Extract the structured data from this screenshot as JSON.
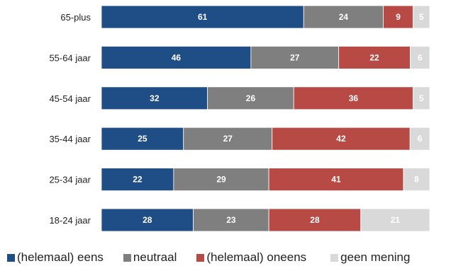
{
  "chart_data": {
    "type": "bar",
    "orientation": "horizontal",
    "stacked": true,
    "categories": [
      "65-plus",
      "55-64 jaar",
      "45-54 jaar",
      "35-44 jaar",
      "25-34 jaar",
      "18-24 jaar"
    ],
    "series": [
      {
        "name": "(helemaal) eens",
        "color": "#1f4e87",
        "values": [
          61,
          46,
          32,
          25,
          22,
          28
        ]
      },
      {
        "name": "neutraal",
        "color": "#7f7f7f",
        "values": [
          24,
          27,
          26,
          27,
          29,
          23
        ]
      },
      {
        "name": "(helemaal) oneens",
        "color": "#b84a45",
        "values": [
          9,
          22,
          36,
          42,
          41,
          28
        ]
      },
      {
        "name": "geen mening",
        "color": "#d9d9d9",
        "values": [
          5,
          6,
          5,
          6,
          8,
          21
        ]
      }
    ],
    "grid": false,
    "legend_position": "bottom"
  }
}
